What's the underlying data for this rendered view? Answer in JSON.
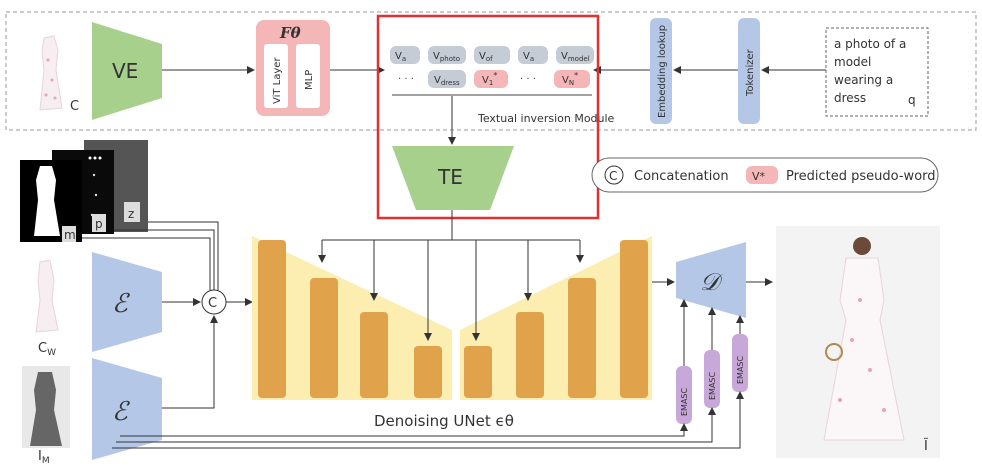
{
  "top_row": {
    "vision_encoder": "VE",
    "cloth_label": "C",
    "f_theta": "Fθ",
    "vit_layer": "ViT Layer",
    "mlp": "MLP",
    "embedding_lookup": "Embedding lookup",
    "tokenizer": "Tokenizer",
    "prompt_lines": [
      "a photo of a",
      "model",
      "wearing a",
      "dress"
    ],
    "prompt_q": "q"
  },
  "textual_inversion": {
    "tokens_row1": [
      {
        "base": "V",
        "sub": "a"
      },
      {
        "base": "V",
        "sub": "photo"
      },
      {
        "base": "V",
        "sub": "of"
      },
      {
        "base": "V",
        "sub": "a"
      },
      {
        "base": "V",
        "sub": "model"
      }
    ],
    "ellipsis": "· · ·",
    "token_dress": {
      "base": "V",
      "sub": "dress"
    },
    "pseudo1": {
      "base": "V",
      "sub": "1",
      "sup": "*"
    },
    "pseudoN": {
      "base": "V",
      "sub": "N",
      "sup": "*"
    },
    "module_label": "Textual inversion Module",
    "text_encoder": "TE"
  },
  "legend": {
    "concat_symbol": "C",
    "concat_label": "Concatenation",
    "pseudo_symbol": "V*",
    "pseudo_label": "Predicted pseudo-word"
  },
  "inputs": {
    "m": "m",
    "p": "p",
    "z": "z",
    "cw": "C",
    "cw_sub": "W",
    "im": "I",
    "im_sub": "M"
  },
  "encoder_symbol": "ℰ",
  "concat_node": "C",
  "unet_label": "Denoising UNet ϵθ",
  "decoder_symbol": "𝒟",
  "emasc": [
    "EMASC",
    "EMASC",
    "EMASC"
  ],
  "output_label": "Ĩ",
  "colors": {
    "green": "#a8d08d",
    "blue": "#b4c7e7",
    "pink": "#f4b6b6",
    "token_gray": "#c5ccd6",
    "unet_yellow": "#fbeeb0",
    "unet_bar": "#e0a24a",
    "emasc_purple": "#c8a8d8",
    "highlight_red": "#e03030"
  }
}
